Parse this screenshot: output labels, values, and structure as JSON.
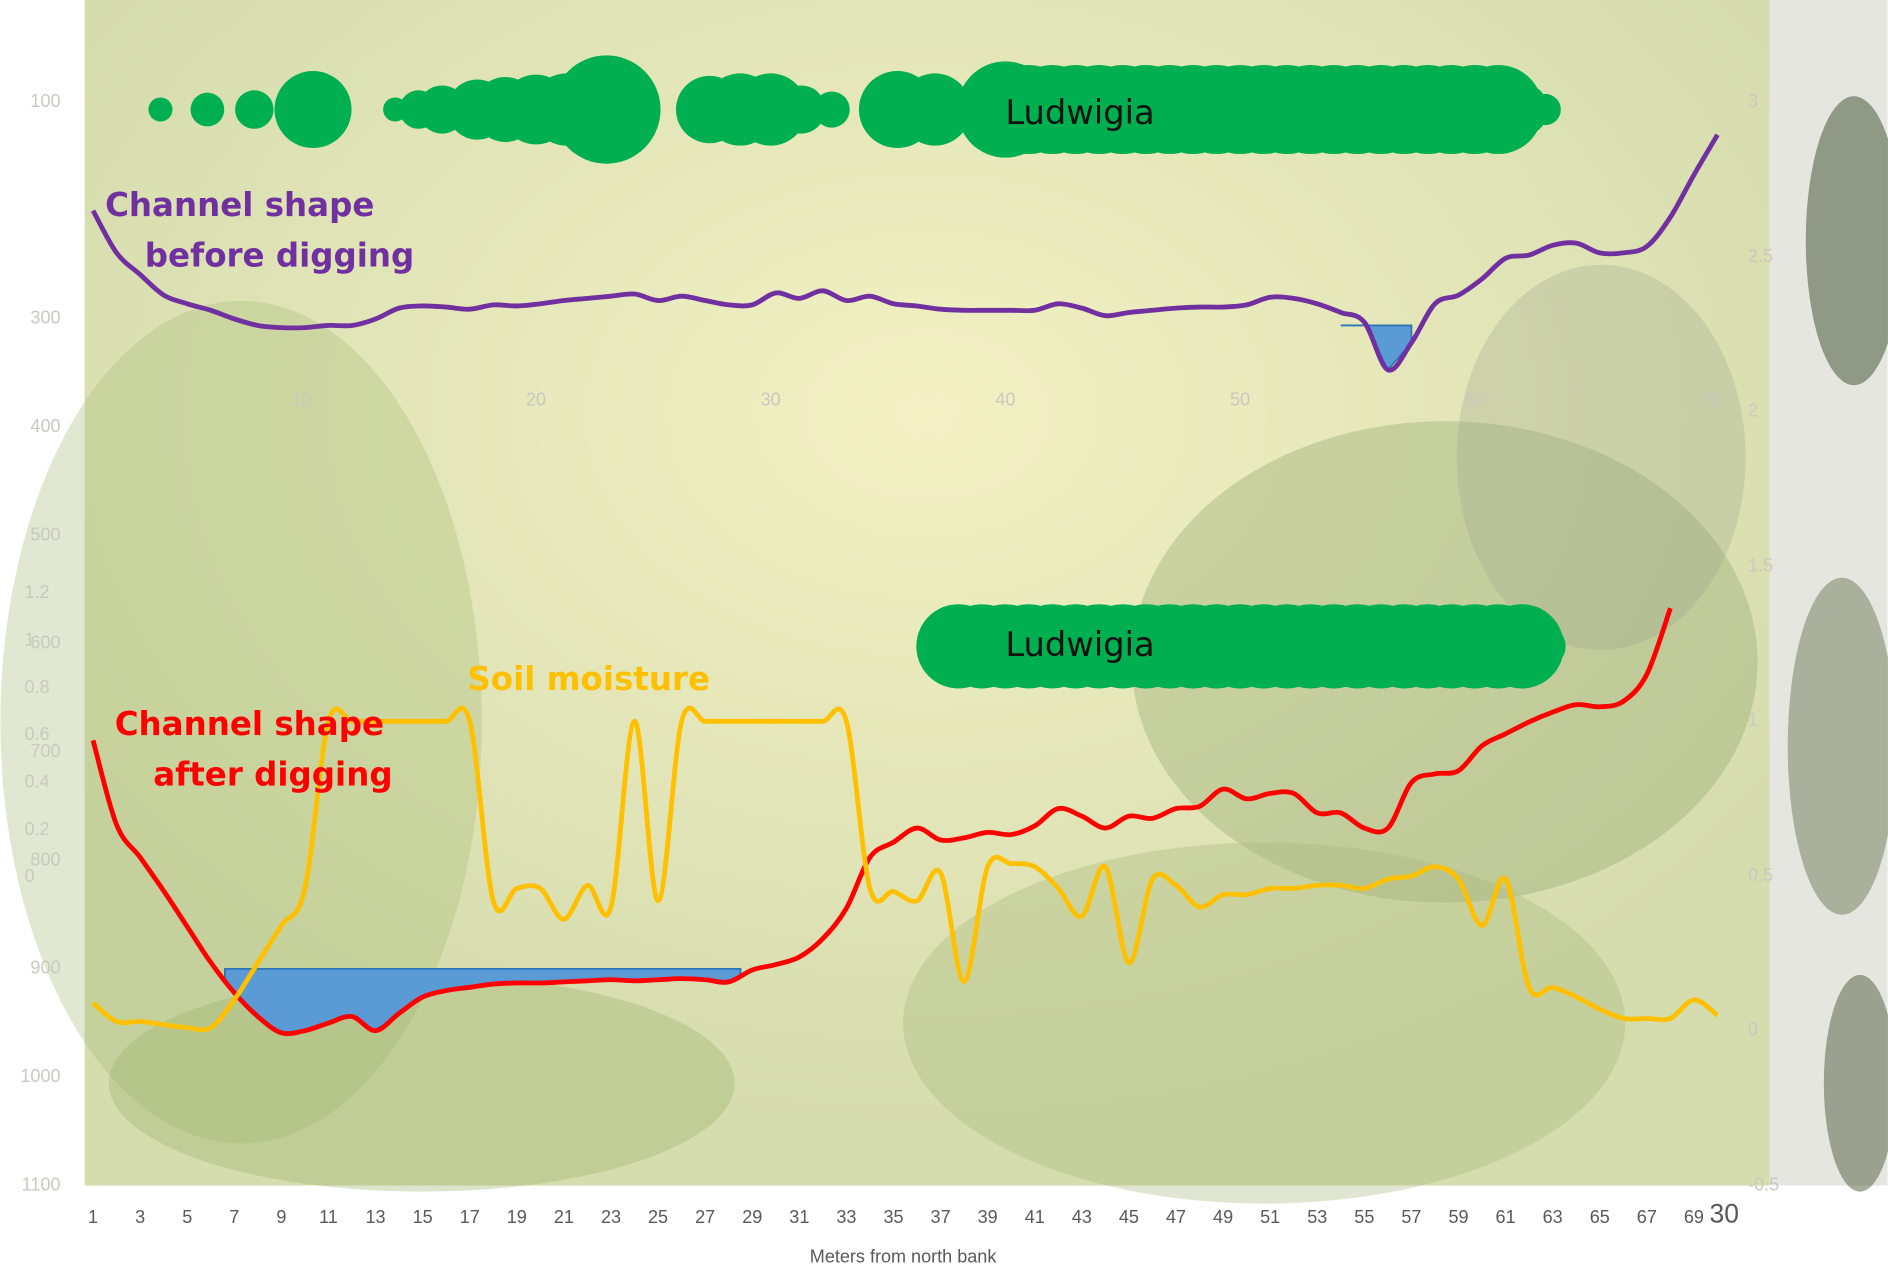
{
  "chart_data": [
    {
      "type": "line",
      "categories": [
        1,
        null,
        3,
        null,
        5,
        null,
        7,
        null,
        9,
        null,
        11,
        null,
        13,
        null,
        15,
        null,
        17,
        null,
        19,
        null,
        21,
        null,
        23,
        null,
        25,
        null,
        27,
        null,
        29,
        null,
        31,
        null,
        33,
        null,
        35,
        null,
        37,
        null,
        39,
        null,
        41,
        null,
        43,
        null,
        45,
        null,
        47,
        null,
        49,
        null,
        51,
        null,
        53,
        null,
        55,
        null,
        57,
        null,
        59,
        null,
        61,
        null,
        63,
        null,
        65,
        null,
        67,
        null,
        69,
        null
      ],
      "x_end_label": "30",
      "xlabel": "Meters from north bank",
      "ylim": [
        1100,
        100
      ],
      "yticks": [
        100,
        300,
        400,
        500,
        600,
        700,
        800,
        900,
        1000,
        1100
      ],
      "y2lim": [
        -0.5,
        3
      ],
      "y2ticks": [
        -0.5,
        0,
        0.5,
        1,
        1.5,
        2,
        2.5,
        3
      ],
      "y3lim": [
        0,
        1.2
      ],
      "y3ticks": [
        0,
        0.2,
        0.4,
        0.6,
        0.8,
        1,
        1.2
      ],
      "series": [
        {
          "label_lines": [
            "Channel shape",
            "before digging"
          ],
          "color": "#7030a0",
          "water": {
            "span": [
              54,
              57
            ],
            "level": 306,
            "color": "#5b9bd5"
          },
          "values": [
            200,
            239,
            259,
            278,
            286,
            292,
            300,
            306,
            308,
            308,
            306,
            306,
            300,
            290,
            288,
            289,
            291,
            287,
            288,
            286,
            283,
            281,
            279,
            277,
            283,
            279,
            283,
            287,
            287,
            276,
            281,
            274,
            283,
            279,
            286,
            288,
            291,
            292,
            292,
            292,
            292,
            286,
            290,
            297,
            294,
            292,
            290,
            289,
            289,
            287,
            280,
            281,
            286,
            294,
            303,
            347,
            322,
            286,
            278,
            263,
            244,
            241,
            232,
            230,
            239,
            239,
            233,
            206,
            167,
            130
          ]
        },
        {
          "label_lines": [
            "Channel shape",
            "after digging"
          ],
          "color": "#ff0000",
          "water": {
            "span": [
              6.6,
              28.5
            ],
            "level": 900,
            "color": "#5b9bd5"
          },
          "values": [
            689,
            767,
            797,
            828,
            861,
            894,
            922,
            944,
            959,
            957,
            950,
            944,
            957,
            941,
            926,
            920,
            917,
            914,
            913,
            913,
            912,
            911,
            910,
            911,
            910,
            909,
            910,
            912,
            901,
            896,
            889,
            872,
            844,
            797,
            783,
            770,
            781,
            779,
            774,
            776,
            768,
            752,
            759,
            770,
            759,
            761,
            752,
            750,
            734,
            743,
            738,
            738,
            756,
            756,
            770,
            770,
            728,
            720,
            717,
            694,
            683,
            672,
            663,
            656,
            658,
            653,
            628,
            567,
            null,
            null
          ]
        },
        {
          "label_lines": [
            "Soil moisture"
          ],
          "color": "#ffc000",
          "axis": "y2",
          "values": [
            0.09,
            0.03,
            0.03,
            0.02,
            0.01,
            0.01,
            0.1,
            0.22,
            0.34,
            0.46,
            1,
            1,
            1,
            1,
            1,
            1,
            1,
            0.42,
            0.46,
            0.46,
            0.36,
            0.47,
            0.4,
            1,
            0.42,
            1,
            1,
            1,
            1,
            1,
            1,
            1,
            1,
            0.46,
            0.45,
            0.42,
            0.51,
            0.16,
            0.53,
            0.54,
            0.53,
            0.46,
            0.37,
            0.53,
            0.22,
            0.49,
            0.47,
            0.4,
            0.44,
            0.44,
            0.46,
            0.46,
            0.47,
            0.47,
            0.46,
            0.49,
            0.5,
            0.53,
            0.49,
            0.34,
            0.49,
            0.14,
            0.14,
            0.11,
            0.07,
            0.04,
            0.04,
            0.04,
            0.1,
            0.05
          ]
        }
      ]
    },
    {
      "type": "bubble",
      "label": "Ludwigia",
      "color": "#00b050",
      "xlim": [
        0,
        70
      ],
      "xticks": [
        10,
        20,
        30,
        40,
        50,
        60,
        70
      ],
      "x": [
        4,
        6,
        8,
        10.5,
        14,
        15,
        16,
        17.5,
        18.7,
        20,
        21.3,
        23,
        27.4,
        28.7,
        30,
        31.3,
        32.6,
        35.4,
        37,
        40,
        41,
        42,
        43,
        44,
        45,
        46,
        47,
        48,
        49,
        50,
        51,
        52,
        53,
        54,
        55,
        56,
        57,
        58,
        59,
        60,
        61,
        62,
        63
      ],
      "sizes": [
        10,
        14,
        16,
        32,
        10,
        16,
        20,
        25,
        27,
        29,
        30,
        45,
        28,
        30,
        30,
        20,
        15,
        32,
        30,
        40,
        37,
        37,
        37,
        37,
        37,
        37,
        37,
        37,
        37,
        37,
        37,
        37,
        37,
        37,
        37,
        37,
        37,
        37,
        37,
        37,
        37,
        22,
        13
      ]
    },
    {
      "type": "bubble",
      "label": "Ludwigia",
      "color": "#00b050",
      "xlim": [
        0,
        70
      ],
      "x": [
        38,
        39,
        40,
        41,
        42,
        43,
        44,
        45,
        46,
        47,
        48,
        49,
        50,
        51,
        52,
        53,
        54,
        55,
        56,
        57,
        58,
        59,
        60,
        61,
        62,
        63
      ],
      "sizes": [
        35,
        35,
        35,
        35,
        35,
        35,
        35,
        35,
        35,
        35,
        35,
        35,
        35,
        35,
        35,
        35,
        35,
        35,
        35,
        35,
        35,
        35,
        35,
        35,
        35,
        17
      ]
    }
  ]
}
